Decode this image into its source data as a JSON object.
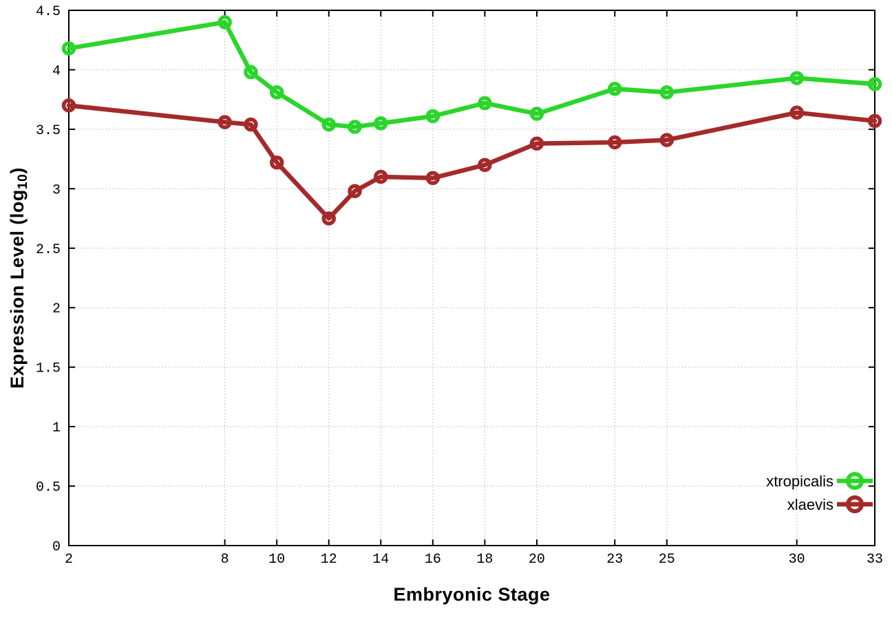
{
  "chart_data": {
    "type": "line",
    "title": "",
    "xlabel": "Embryonic Stage",
    "ylabel": "Expression Level (log10)",
    "ylabel_parts": {
      "main": "Expression Level (log",
      "sub": "10",
      "end": ")"
    },
    "xlim": [
      2,
      33
    ],
    "ylim": [
      0,
      4.5
    ],
    "xticks": [
      2,
      8,
      10,
      12,
      14,
      16,
      18,
      20,
      23,
      25,
      30,
      33
    ],
    "yticks": [
      0,
      0.5,
      1,
      1.5,
      2,
      2.5,
      3,
      3.5,
      4,
      4.5
    ],
    "ytick_labels": [
      "0",
      "0.5",
      "1",
      "1.5",
      "2",
      "2.5",
      "3",
      "3.5",
      "4",
      "4.5"
    ],
    "grid": true,
    "legend_position": "inside-bottom-right",
    "x": [
      2,
      8,
      9,
      10,
      12,
      13,
      14,
      16,
      18,
      20,
      23,
      25,
      30,
      33
    ],
    "series": [
      {
        "name": "xtropicalis",
        "color": "#2bd52b",
        "marker": "open-circle",
        "values": [
          4.18,
          4.4,
          3.98,
          3.81,
          3.54,
          3.52,
          3.55,
          3.61,
          3.72,
          3.63,
          3.84,
          3.81,
          3.93,
          3.88
        ]
      },
      {
        "name": "xlaevis",
        "color": "#a42a2a",
        "marker": "open-circle",
        "values": [
          3.7,
          3.56,
          3.54,
          3.22,
          2.75,
          2.98,
          3.1,
          3.09,
          3.2,
          3.38,
          3.39,
          3.41,
          3.64,
          3.57
        ]
      }
    ],
    "style": {
      "background": "#ffffff",
      "border_color": "#000000",
      "grid_color": "#b5b5b5",
      "tick_label_color": "#000000"
    }
  }
}
